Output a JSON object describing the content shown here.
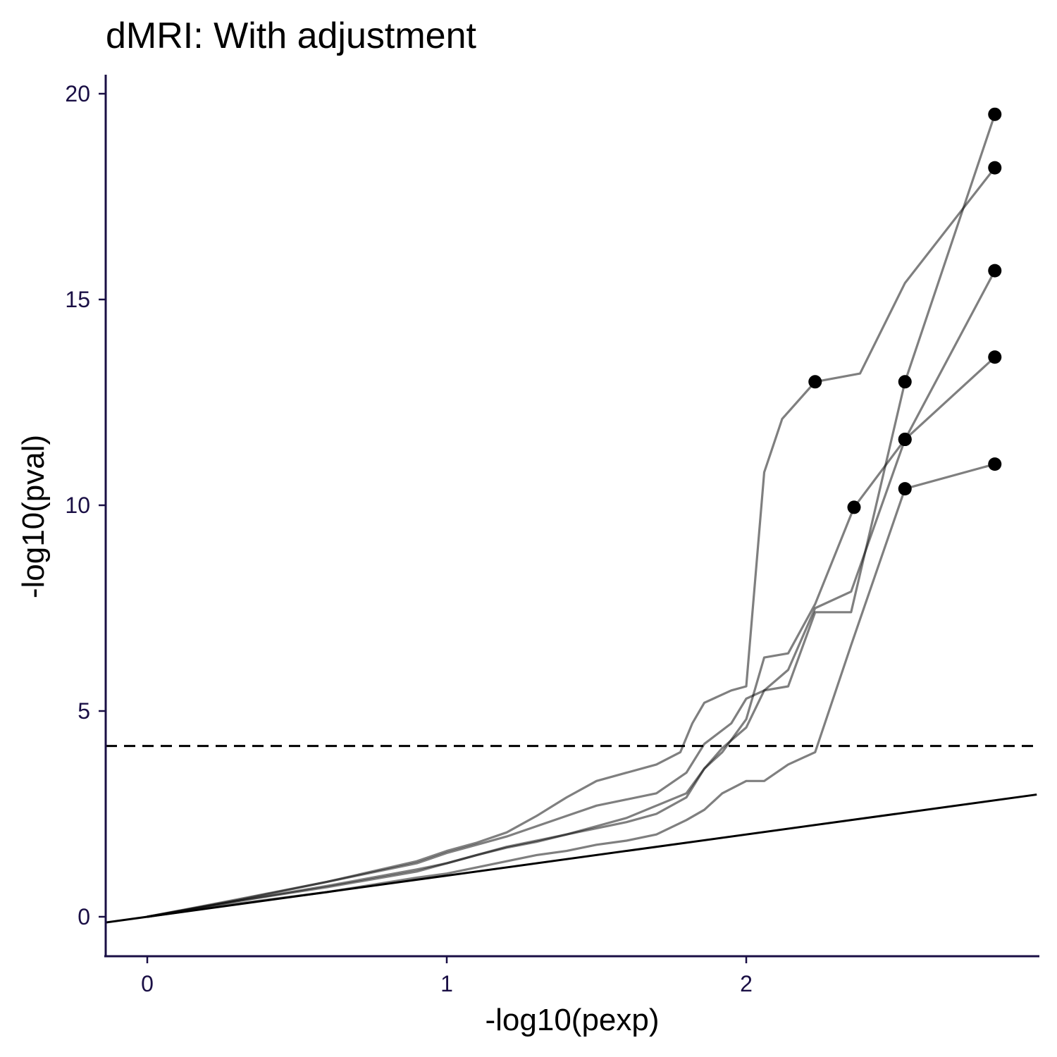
{
  "chart_data": {
    "type": "line",
    "title": "dMRI: With adjustment",
    "xlabel": "-log10(pexp)",
    "ylabel": "-log10(pval)",
    "xlim": [
      -0.14,
      2.97
    ],
    "ylim": [
      -0.95,
      20.5
    ],
    "x_ticks": [
      0,
      1,
      2
    ],
    "y_ticks": [
      0,
      5,
      10,
      15,
      20
    ],
    "grid": false,
    "legend": "none",
    "reference_line": {
      "slope": 1,
      "intercept": 0,
      "label": ""
    },
    "threshold_line": {
      "y": 4.15,
      "style": "dashed"
    },
    "series": [
      {
        "points": [
          [
            0,
            0
          ],
          [
            0.3,
            0.42
          ],
          [
            0.6,
            0.85
          ],
          [
            0.9,
            1.35
          ],
          [
            1.0,
            1.6
          ],
          [
            1.1,
            1.8
          ],
          [
            1.2,
            2.05
          ],
          [
            1.3,
            2.45
          ],
          [
            1.4,
            2.9
          ],
          [
            1.5,
            3.3
          ],
          [
            1.6,
            3.5
          ],
          [
            1.7,
            3.7
          ],
          [
            1.78,
            4.0
          ],
          [
            1.82,
            4.7
          ],
          [
            1.86,
            5.2
          ],
          [
            1.95,
            5.5
          ],
          [
            2.0,
            5.6
          ],
          [
            2.06,
            10.8
          ],
          [
            2.12,
            12.1
          ],
          [
            2.23,
            13.0
          ],
          [
            2.38,
            13.2
          ],
          [
            2.53,
            15.4
          ],
          [
            2.83,
            18.2
          ]
        ],
        "highlights": [
          [
            2.23,
            13.0
          ],
          [
            2.83,
            18.2
          ]
        ]
      },
      {
        "points": [
          [
            0,
            0
          ],
          [
            0.3,
            0.4
          ],
          [
            0.6,
            0.85
          ],
          [
            0.9,
            1.3
          ],
          [
            1.0,
            1.55
          ],
          [
            1.1,
            1.75
          ],
          [
            1.2,
            1.95
          ],
          [
            1.3,
            2.2
          ],
          [
            1.4,
            2.45
          ],
          [
            1.5,
            2.7
          ],
          [
            1.6,
            2.85
          ],
          [
            1.7,
            3.0
          ],
          [
            1.8,
            3.5
          ],
          [
            1.86,
            4.2
          ],
          [
            1.95,
            4.7
          ],
          [
            2.0,
            5.3
          ],
          [
            2.06,
            5.5
          ],
          [
            2.14,
            6.0
          ],
          [
            2.23,
            7.5
          ],
          [
            2.35,
            7.9
          ],
          [
            2.53,
            11.6
          ],
          [
            2.83,
            15.7
          ]
        ],
        "highlights": [
          [
            2.53,
            11.6
          ],
          [
            2.83,
            15.7
          ]
        ]
      },
      {
        "points": [
          [
            0,
            0
          ],
          [
            0.3,
            0.38
          ],
          [
            0.6,
            0.75
          ],
          [
            0.9,
            1.15
          ],
          [
            1.0,
            1.3
          ],
          [
            1.1,
            1.5
          ],
          [
            1.2,
            1.7
          ],
          [
            1.3,
            1.85
          ],
          [
            1.4,
            2.0
          ],
          [
            1.5,
            2.2
          ],
          [
            1.6,
            2.4
          ],
          [
            1.7,
            2.7
          ],
          [
            1.8,
            3.0
          ],
          [
            1.86,
            3.6
          ],
          [
            1.92,
            4.0
          ],
          [
            2.0,
            4.8
          ],
          [
            2.06,
            6.3
          ],
          [
            2.14,
            6.4
          ],
          [
            2.23,
            7.6
          ],
          [
            2.36,
            9.95
          ],
          [
            2.53,
            11.6
          ],
          [
            2.83,
            13.6
          ]
        ],
        "highlights": [
          [
            2.36,
            9.95
          ],
          [
            2.53,
            11.6
          ],
          [
            2.83,
            13.6
          ]
        ]
      },
      {
        "points": [
          [
            0,
            0
          ],
          [
            0.3,
            0.38
          ],
          [
            0.6,
            0.72
          ],
          [
            0.9,
            1.1
          ],
          [
            1.0,
            1.3
          ],
          [
            1.1,
            1.5
          ],
          [
            1.2,
            1.68
          ],
          [
            1.3,
            1.82
          ],
          [
            1.4,
            2.0
          ],
          [
            1.5,
            2.15
          ],
          [
            1.6,
            2.3
          ],
          [
            1.7,
            2.5
          ],
          [
            1.8,
            2.9
          ],
          [
            1.86,
            3.6
          ],
          [
            1.92,
            4.1
          ],
          [
            2.0,
            4.6
          ],
          [
            2.06,
            5.5
          ],
          [
            2.14,
            5.6
          ],
          [
            2.23,
            7.4
          ],
          [
            2.35,
            7.4
          ],
          [
            2.53,
            13.0
          ],
          [
            2.83,
            19.5
          ]
        ],
        "highlights": [
          [
            2.53,
            13.0
          ],
          [
            2.83,
            19.5
          ]
        ]
      },
      {
        "points": [
          [
            0,
            0
          ],
          [
            0.3,
            0.32
          ],
          [
            0.6,
            0.6
          ],
          [
            0.9,
            0.95
          ],
          [
            1.0,
            1.05
          ],
          [
            1.1,
            1.2
          ],
          [
            1.2,
            1.35
          ],
          [
            1.3,
            1.5
          ],
          [
            1.4,
            1.6
          ],
          [
            1.5,
            1.75
          ],
          [
            1.6,
            1.85
          ],
          [
            1.7,
            2.0
          ],
          [
            1.8,
            2.35
          ],
          [
            1.86,
            2.6
          ],
          [
            1.92,
            3.0
          ],
          [
            2.0,
            3.3
          ],
          [
            2.06,
            3.3
          ],
          [
            2.14,
            3.7
          ],
          [
            2.23,
            4.0
          ],
          [
            2.35,
            6.6
          ],
          [
            2.53,
            10.4
          ],
          [
            2.83,
            11.0
          ]
        ],
        "highlights": [
          [
            2.53,
            10.4
          ],
          [
            2.83,
            11.0
          ]
        ]
      }
    ]
  }
}
